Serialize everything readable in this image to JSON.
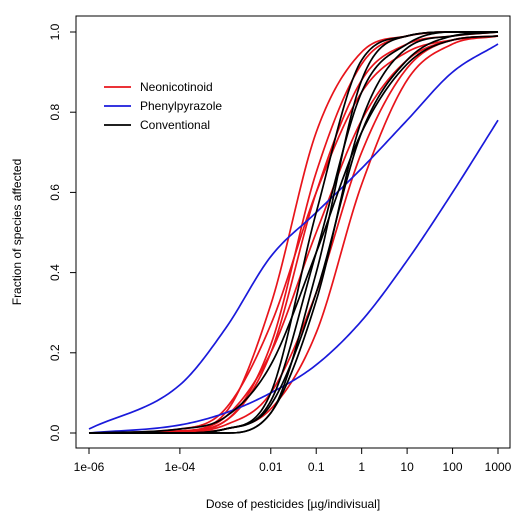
{
  "chart_data": {
    "type": "line",
    "title": "",
    "xlabel": "Dose of pesticides [µg/indivisual]",
    "ylabel": "Fraction of species affected",
    "x_scale": "log10",
    "xlim": [
      1e-06,
      1000
    ],
    "ylim": [
      0,
      1
    ],
    "x_ticks": [
      {
        "value": 1e-06,
        "label": "1e-06"
      },
      {
        "value": 0.0001,
        "label": "1e-04"
      },
      {
        "value": 0.01,
        "label": "0.01"
      },
      {
        "value": 0.1,
        "label": "0.1"
      },
      {
        "value": 1,
        "label": "1"
      },
      {
        "value": 10,
        "label": "10"
      },
      {
        "value": 100,
        "label": "100"
      },
      {
        "value": 1000,
        "label": "1000"
      }
    ],
    "y_ticks": [
      {
        "value": 0.0,
        "label": "0.0"
      },
      {
        "value": 0.2,
        "label": "0.2"
      },
      {
        "value": 0.4,
        "label": "0.4"
      },
      {
        "value": 0.6,
        "label": "0.6"
      },
      {
        "value": 0.8,
        "label": "0.8"
      },
      {
        "value": 1.0,
        "label": "1.0"
      }
    ],
    "grid": false,
    "legend": {
      "placement": "top-left",
      "entries": [
        {
          "label": "Neonicotinoid",
          "color": "#e8141b"
        },
        {
          "label": "Phenylpyrazole",
          "color": "#1a1adb"
        },
        {
          "label": "Conventional",
          "color": "#000000"
        }
      ]
    },
    "series": [
      {
        "group": "Neonicotinoid",
        "color": "#e8141b",
        "x": [
          1e-06,
          0.0001,
          0.001,
          0.01,
          0.1,
          1,
          10,
          100,
          1000
        ],
        "y": [
          0.0,
          0.005,
          0.05,
          0.32,
          0.75,
          0.95,
          0.99,
          1.0,
          1.0
        ]
      },
      {
        "group": "Neonicotinoid",
        "color": "#e8141b",
        "x": [
          1e-06,
          0.0001,
          0.001,
          0.01,
          0.1,
          1,
          10,
          100,
          1000
        ],
        "y": [
          0.0,
          0.005,
          0.03,
          0.2,
          0.6,
          0.88,
          0.97,
          0.99,
          1.0
        ]
      },
      {
        "group": "Neonicotinoid",
        "color": "#e8141b",
        "x": [
          1e-06,
          0.0001,
          0.001,
          0.01,
          0.1,
          1,
          10,
          100,
          1000
        ],
        "y": [
          0.0,
          0.01,
          0.06,
          0.27,
          0.6,
          0.85,
          0.95,
          0.98,
          0.99
        ]
      },
      {
        "group": "Neonicotinoid",
        "color": "#e8141b",
        "x": [
          1e-06,
          0.0001,
          0.001,
          0.01,
          0.1,
          1,
          10,
          100,
          1000
        ],
        "y": [
          0.0,
          0.003,
          0.03,
          0.22,
          0.65,
          0.92,
          0.99,
          1.0,
          1.0
        ]
      },
      {
        "group": "Neonicotinoid",
        "color": "#e8141b",
        "x": [
          1e-06,
          0.0001,
          0.001,
          0.01,
          0.1,
          1,
          10,
          100,
          1000
        ],
        "y": [
          0.0,
          0.003,
          0.02,
          0.1,
          0.35,
          0.7,
          0.91,
          0.98,
          0.99
        ]
      },
      {
        "group": "Neonicotinoid",
        "color": "#e8141b",
        "x": [
          1e-06,
          0.0001,
          0.001,
          0.01,
          0.1,
          1,
          10,
          100,
          1000
        ],
        "y": [
          0.0,
          0.002,
          0.01,
          0.06,
          0.25,
          0.62,
          0.88,
          0.97,
          0.99
        ]
      },
      {
        "group": "Neonicotinoid",
        "color": "#e8141b",
        "x": [
          1e-06,
          0.0001,
          0.001,
          0.01,
          0.1,
          1,
          10,
          100,
          1000
        ],
        "y": [
          0.0,
          0.005,
          0.04,
          0.2,
          0.5,
          0.78,
          0.93,
          0.98,
          0.99
        ]
      },
      {
        "group": "Phenylpyrazole",
        "color": "#1a1adb",
        "x": [
          1e-06,
          0.0001,
          0.001,
          0.01,
          0.1,
          1,
          10,
          100,
          1000
        ],
        "y": [
          0.01,
          0.12,
          0.26,
          0.44,
          0.55,
          0.66,
          0.78,
          0.9,
          0.97
        ]
      },
      {
        "group": "Phenylpyrazole",
        "color": "#1a1adb",
        "x": [
          1e-06,
          0.0001,
          0.001,
          0.01,
          0.1,
          1,
          10,
          100,
          1000
        ],
        "y": [
          0.0,
          0.02,
          0.05,
          0.1,
          0.17,
          0.28,
          0.43,
          0.6,
          0.78
        ]
      },
      {
        "group": "Conventional",
        "color": "#000000",
        "x": [
          1e-06,
          0.0001,
          0.001,
          0.01,
          0.1,
          1,
          10,
          100,
          1000
        ],
        "y": [
          0.0,
          0.0,
          0.01,
          0.1,
          0.55,
          0.93,
          0.99,
          1.0,
          1.0
        ]
      },
      {
        "group": "Conventional",
        "color": "#000000",
        "x": [
          1e-06,
          0.0001,
          0.001,
          0.01,
          0.1,
          1,
          10,
          100,
          1000
        ],
        "y": [
          0.0,
          0.0,
          0.01,
          0.08,
          0.45,
          0.85,
          0.97,
          1.0,
          1.0
        ]
      },
      {
        "group": "Conventional",
        "color": "#000000",
        "x": [
          1e-06,
          0.0001,
          0.001,
          0.01,
          0.1,
          1,
          10,
          100,
          1000
        ],
        "y": [
          0.0,
          0.0,
          0.0,
          0.05,
          0.4,
          0.88,
          0.99,
          1.0,
          1.0
        ]
      },
      {
        "group": "Conventional",
        "color": "#000000",
        "x": [
          1e-06,
          0.0001,
          0.001,
          0.01,
          0.1,
          1,
          10,
          100,
          1000
        ],
        "y": [
          0.0,
          0.0,
          0.0,
          0.05,
          0.33,
          0.78,
          0.96,
          0.99,
          1.0
        ]
      },
      {
        "group": "Conventional",
        "color": "#000000",
        "x": [
          1e-06,
          0.0001,
          0.001,
          0.01,
          0.1,
          1,
          10,
          100,
          1000
        ],
        "y": [
          0.0,
          0.01,
          0.04,
          0.17,
          0.45,
          0.75,
          0.92,
          0.98,
          0.99
        ]
      },
      {
        "group": "Conventional",
        "color": "#000000",
        "x": [
          1e-06,
          0.0001,
          0.001,
          0.01,
          0.1,
          1,
          10,
          100,
          1000
        ],
        "y": [
          0.0,
          0.0,
          0.01,
          0.07,
          0.35,
          0.75,
          0.93,
          0.99,
          1.0
        ]
      }
    ]
  }
}
